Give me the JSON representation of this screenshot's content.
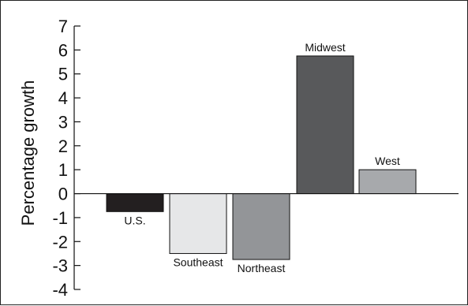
{
  "chart_data": {
    "type": "bar",
    "title": "",
    "xlabel": "",
    "ylabel": "Percentage growth",
    "ylim": [
      -4,
      7
    ],
    "yticks": [
      7,
      6,
      5,
      4,
      3,
      2,
      1,
      0,
      -1,
      -2,
      -3,
      -4
    ],
    "grid": false,
    "legend": "none",
    "categories": [
      "U.S.",
      "Southeast",
      "Northeast",
      "Midwest",
      "West"
    ],
    "values": [
      -0.75,
      -2.5,
      -2.75,
      5.75,
      1.0
    ],
    "colors": [
      "#231f20",
      "#e6e7e8",
      "#939598",
      "#58595b",
      "#a7a9ac"
    ]
  }
}
